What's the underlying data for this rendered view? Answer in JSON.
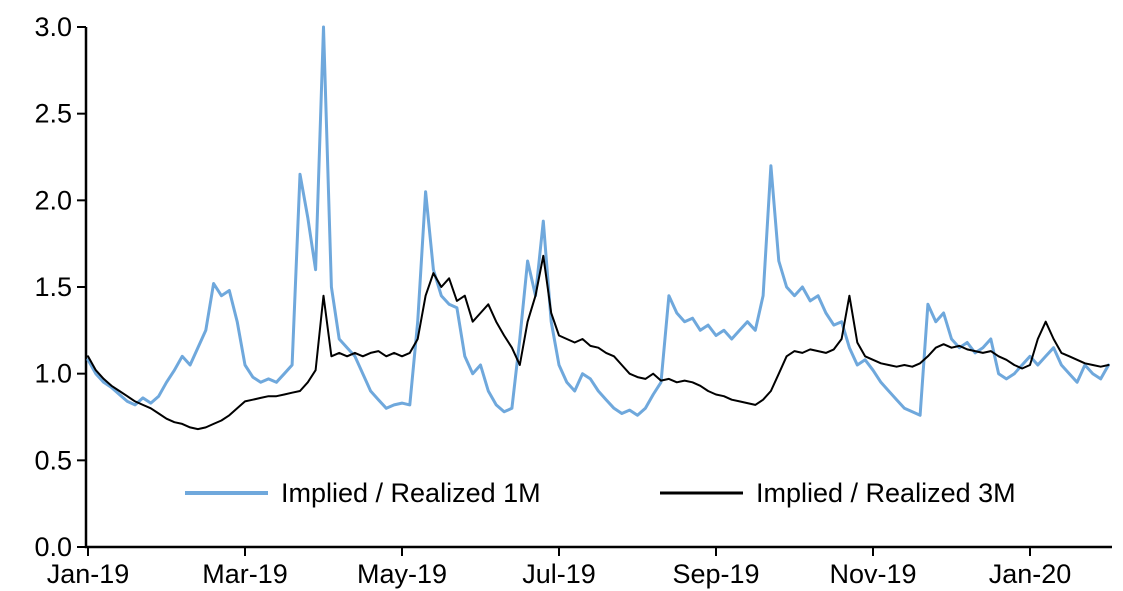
{
  "chart_data": {
    "type": "line",
    "title": "",
    "xlabel": "",
    "ylabel": "",
    "grid": false,
    "legend_position": "inside-bottom",
    "ylim": [
      0.0,
      3.0
    ],
    "y_tick_labels": [
      "0.0",
      "0.5",
      "1.0",
      "1.5",
      "2.0",
      "2.5",
      "3.0"
    ],
    "y_tick_values": [
      0.0,
      0.5,
      1.0,
      1.5,
      2.0,
      2.5,
      3.0
    ],
    "x_tick_labels": [
      "Jan-19",
      "Mar-19",
      "May-19",
      "Jul-19",
      "Sep-19",
      "Nov-19",
      "Jan-20"
    ],
    "x_tick_months": [
      0,
      2,
      4,
      6,
      8,
      10,
      12
    ],
    "x_range_months": [
      0,
      13
    ],
    "axis_color": "#000000",
    "background_color": "#ffffff",
    "series": [
      {
        "name": "Implied / Realized 1M",
        "color": "#6FA8DC",
        "stroke_width": 3,
        "values": [
          1.08,
          1.0,
          0.95,
          0.92,
          0.88,
          0.84,
          0.82,
          0.86,
          0.83,
          0.87,
          0.95,
          1.02,
          1.1,
          1.05,
          1.15,
          1.25,
          1.52,
          1.45,
          1.48,
          1.3,
          1.05,
          0.98,
          0.95,
          0.97,
          0.95,
          1.0,
          1.05,
          2.15,
          1.9,
          1.6,
          3.0,
          1.5,
          1.2,
          1.15,
          1.1,
          1.0,
          0.9,
          0.85,
          0.8,
          0.82,
          0.83,
          0.82,
          1.3,
          2.05,
          1.6,
          1.45,
          1.4,
          1.38,
          1.1,
          1.0,
          1.05,
          0.9,
          0.82,
          0.78,
          0.8,
          1.2,
          1.65,
          1.45,
          1.88,
          1.3,
          1.05,
          0.95,
          0.9,
          1.0,
          0.97,
          0.9,
          0.85,
          0.8,
          0.77,
          0.79,
          0.76,
          0.8,
          0.88,
          0.95,
          1.45,
          1.35,
          1.3,
          1.32,
          1.25,
          1.28,
          1.22,
          1.25,
          1.2,
          1.25,
          1.3,
          1.25,
          1.45,
          2.2,
          1.65,
          1.5,
          1.45,
          1.5,
          1.42,
          1.45,
          1.35,
          1.28,
          1.3,
          1.15,
          1.05,
          1.08,
          1.02,
          0.95,
          0.9,
          0.85,
          0.8,
          0.78,
          0.76,
          1.4,
          1.3,
          1.35,
          1.2,
          1.15,
          1.18,
          1.12,
          1.15,
          1.2,
          1.0,
          0.97,
          1.0,
          1.05,
          1.1,
          1.05,
          1.1,
          1.15,
          1.05,
          1.0,
          0.95,
          1.05,
          1.0,
          0.97,
          1.05
        ]
      },
      {
        "name": "Implied / Realized 3M",
        "color": "#000000",
        "stroke_width": 2,
        "values": [
          1.1,
          1.02,
          0.97,
          0.93,
          0.9,
          0.87,
          0.84,
          0.82,
          0.8,
          0.77,
          0.74,
          0.72,
          0.71,
          0.69,
          0.68,
          0.69,
          0.71,
          0.73,
          0.76,
          0.8,
          0.84,
          0.85,
          0.86,
          0.87,
          0.87,
          0.88,
          0.89,
          0.9,
          0.95,
          1.02,
          1.45,
          1.1,
          1.12,
          1.1,
          1.12,
          1.1,
          1.12,
          1.13,
          1.1,
          1.12,
          1.1,
          1.12,
          1.2,
          1.45,
          1.58,
          1.5,
          1.55,
          1.42,
          1.45,
          1.3,
          1.35,
          1.4,
          1.3,
          1.22,
          1.15,
          1.05,
          1.3,
          1.45,
          1.68,
          1.35,
          1.22,
          1.2,
          1.18,
          1.2,
          1.16,
          1.15,
          1.12,
          1.1,
          1.05,
          1.0,
          0.98,
          0.97,
          1.0,
          0.96,
          0.97,
          0.95,
          0.96,
          0.95,
          0.93,
          0.9,
          0.88,
          0.87,
          0.85,
          0.84,
          0.83,
          0.82,
          0.85,
          0.9,
          1.0,
          1.1,
          1.13,
          1.12,
          1.14,
          1.13,
          1.12,
          1.14,
          1.2,
          1.45,
          1.18,
          1.1,
          1.08,
          1.06,
          1.05,
          1.04,
          1.05,
          1.04,
          1.06,
          1.1,
          1.15,
          1.17,
          1.15,
          1.16,
          1.14,
          1.13,
          1.12,
          1.13,
          1.1,
          1.08,
          1.05,
          1.03,
          1.05,
          1.2,
          1.3,
          1.2,
          1.12,
          1.1,
          1.08,
          1.06,
          1.05,
          1.04,
          1.05
        ]
      }
    ]
  }
}
